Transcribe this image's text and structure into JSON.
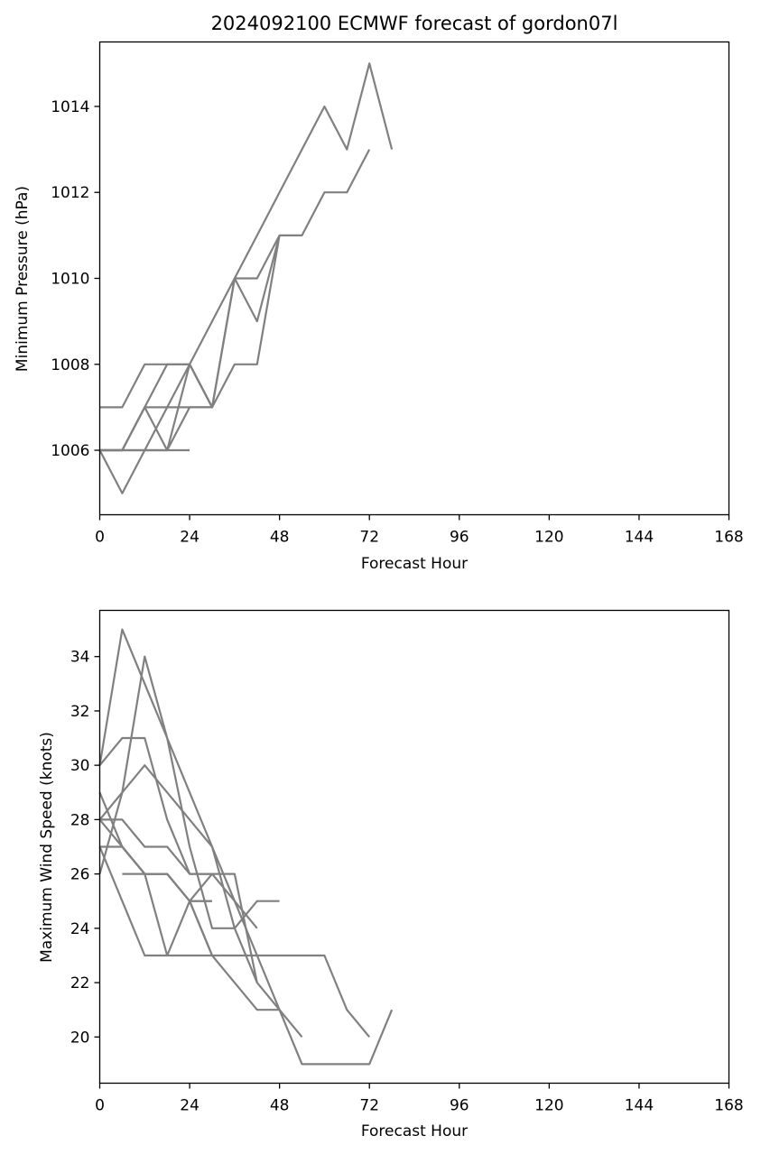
{
  "title": "2024092100 ECMWF forecast of gordon07l",
  "line_color": "#808080",
  "chart_data": [
    {
      "type": "line",
      "xlabel": "Forecast Hour",
      "ylabel": "Minimum Pressure (hPa)",
      "xlim": [
        0,
        168
      ],
      "ylim": [
        1004.5,
        1015.5
      ],
      "xticks": [
        0,
        24,
        48,
        72,
        96,
        120,
        144,
        168
      ],
      "yticks": [
        1006,
        1008,
        1010,
        1012,
        1014
      ],
      "grid": false,
      "series": [
        {
          "x": [
            0,
            6,
            12,
            18,
            24,
            30,
            36,
            42,
            48,
            54,
            60,
            66,
            72,
            78
          ],
          "values": [
            1006,
            1005,
            1006,
            1007,
            1008,
            1009,
            1010,
            1011,
            1012,
            1013,
            1014,
            1013,
            1015,
            1013
          ]
        },
        {
          "x": [
            0,
            6,
            12,
            18,
            24,
            30,
            36,
            42,
            48,
            54,
            60,
            66,
            72
          ],
          "values": [
            1006,
            1006,
            1007,
            1007,
            1007,
            1007,
            1008,
            1008,
            1011,
            1011,
            1012,
            1012,
            1013
          ]
        },
        {
          "x": [
            0,
            6,
            12,
            18,
            24,
            30,
            36,
            42,
            48
          ],
          "values": [
            1007,
            1007,
            1008,
            1008,
            1008,
            1007,
            1010,
            1009,
            1011
          ]
        },
        {
          "x": [
            0,
            6,
            12,
            18,
            24,
            30,
            36,
            42,
            48
          ],
          "values": [
            1006,
            1006,
            1007,
            1008,
            1008,
            1007,
            1010,
            1010,
            1011
          ]
        },
        {
          "x": [
            0,
            6,
            12,
            18,
            24,
            30
          ],
          "values": [
            1006,
            1006,
            1006,
            1006,
            1007,
            1007
          ]
        },
        {
          "x": [
            0,
            6,
            12,
            18,
            24,
            30
          ],
          "values": [
            1006,
            1006,
            1007,
            1006,
            1008,
            1007
          ]
        },
        {
          "x": [
            0,
            6,
            12,
            18,
            24
          ],
          "values": [
            1006,
            1006,
            1006,
            1006,
            1006
          ]
        }
      ]
    },
    {
      "type": "line",
      "xlabel": "Forecast Hour",
      "ylabel": "Maximum Wind Speed (knots)",
      "xlim": [
        0,
        168
      ],
      "ylim": [
        18.3,
        35.7
      ],
      "xticks": [
        0,
        24,
        48,
        72,
        96,
        120,
        144,
        168
      ],
      "yticks": [
        20,
        22,
        24,
        26,
        28,
        30,
        32,
        34
      ],
      "grid": false,
      "series": [
        {
          "x": [
            0,
            6,
            12,
            18,
            24,
            30,
            36,
            42,
            48,
            54,
            60,
            66,
            72,
            78
          ],
          "values": [
            28,
            29,
            30,
            29,
            28,
            27,
            25,
            23,
            21,
            19,
            19,
            19,
            19,
            21
          ]
        },
        {
          "x": [
            0,
            6,
            12,
            18,
            24,
            30,
            36,
            42,
            48,
            54,
            60,
            66,
            72
          ],
          "values": [
            29,
            27,
            26,
            26,
            25,
            23,
            23,
            23,
            23,
            23,
            23,
            21,
            20
          ]
        },
        {
          "x": [
            0,
            6,
            12,
            18,
            24,
            30,
            36,
            42
          ],
          "values": [
            30,
            31,
            31,
            28,
            26,
            26,
            26,
            22
          ]
        },
        {
          "x": [
            0,
            6,
            12,
            18,
            24,
            30,
            36,
            42,
            48,
            54
          ],
          "values": [
            30,
            35,
            33,
            31,
            29,
            27,
            24,
            22,
            21,
            20
          ]
        },
        {
          "x": [
            0,
            6,
            12,
            18,
            24,
            30,
            36,
            42,
            48
          ],
          "values": [
            26,
            29,
            34,
            31,
            27,
            24,
            24,
            25,
            25
          ]
        },
        {
          "x": [
            0,
            6,
            12,
            18,
            24,
            30,
            36,
            42
          ],
          "values": [
            27,
            27,
            26,
            26,
            25,
            26,
            25,
            24
          ]
        },
        {
          "x": [
            0,
            6,
            12,
            18,
            24,
            30
          ],
          "values": [
            28,
            28,
            27,
            27,
            26,
            26
          ]
        },
        {
          "x": [
            0,
            6,
            12,
            18,
            24,
            30
          ],
          "values": [
            27,
            25,
            23,
            23,
            23,
            23
          ]
        },
        {
          "x": [
            0,
            6,
            12,
            18,
            24,
            30
          ],
          "values": [
            28,
            27,
            26,
            23,
            25,
            25
          ]
        },
        {
          "x": [
            6,
            12,
            18,
            24,
            30
          ],
          "values": [
            26,
            26,
            26,
            25,
            25
          ]
        },
        {
          "x": [
            24,
            30,
            36,
            42,
            48
          ],
          "values": [
            25,
            23,
            22,
            21,
            21
          ]
        }
      ]
    }
  ]
}
